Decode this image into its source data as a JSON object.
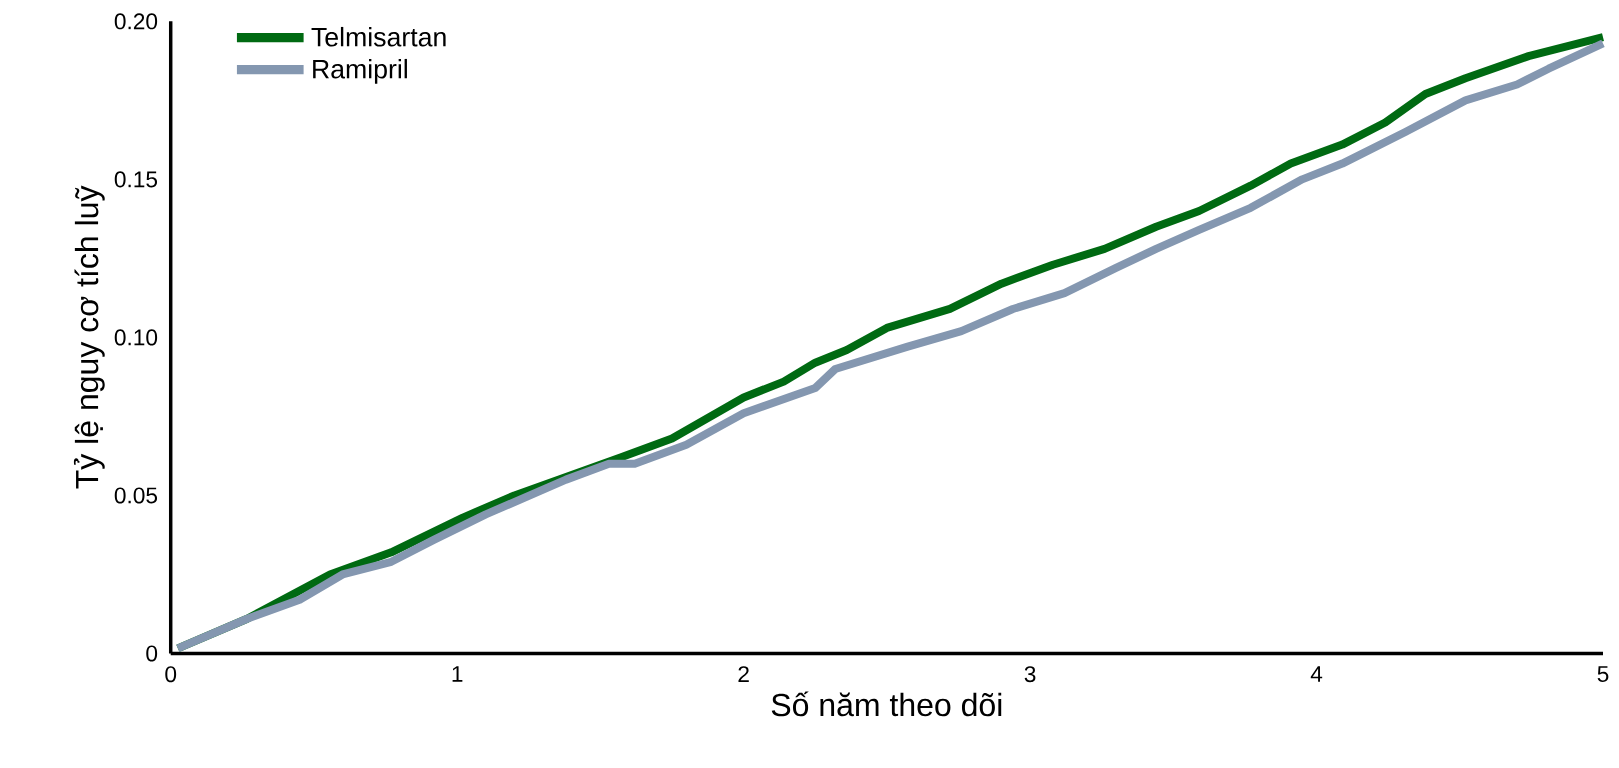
{
  "chart_data": {
    "type": "line",
    "xlabel": "Số năm theo dõi",
    "ylabel": "Tỷ lệ nguy cơ tích luỹ",
    "xlim": [
      0,
      5
    ],
    "ylim": [
      0,
      0.2
    ],
    "xticks": [
      0,
      1,
      2,
      3,
      4,
      5
    ],
    "yticks": [
      0,
      {
        "value": 0.05,
        "label": "0.05"
      },
      {
        "value": 0.1,
        "label": "0.10"
      },
      {
        "value": 0.15,
        "label": "0.15"
      },
      {
        "value": 0.2,
        "label": "0.20"
      }
    ],
    "legend": "top left",
    "series": [
      {
        "name": "Telmisartan",
        "color": "#006a12",
        "x": [
          0.025,
          0.267,
          0.556,
          0.77,
          1.02,
          1.2,
          1.57,
          1.75,
          2.0,
          2.14,
          2.25,
          2.36,
          2.5,
          2.72,
          2.9,
          3.08,
          3.26,
          3.44,
          3.59,
          3.77,
          3.91,
          4.09,
          4.24,
          4.38,
          4.52,
          4.74,
          5.0
        ],
        "values": [
          0.0016,
          0.011,
          0.025,
          0.032,
          0.043,
          0.05,
          0.062,
          0.068,
          0.081,
          0.086,
          0.092,
          0.096,
          0.103,
          0.109,
          0.117,
          0.123,
          0.128,
          0.135,
          0.14,
          0.148,
          0.155,
          0.161,
          0.168,
          0.177,
          0.182,
          0.189,
          0.195
        ]
      },
      {
        "name": "Ramipril",
        "color": "#8497b0",
        "x": [
          0.025,
          0.267,
          0.45,
          0.6,
          0.77,
          0.92,
          1.1,
          1.38,
          1.53,
          1.62,
          1.8,
          2.0,
          2.25,
          2.32,
          2.57,
          2.76,
          2.94,
          3.12,
          3.3,
          3.44,
          3.59,
          3.77,
          3.95,
          4.09,
          4.31,
          4.52,
          4.7,
          4.81,
          5.0
        ],
        "values": [
          0.0016,
          0.011,
          0.017,
          0.025,
          0.029,
          0.036,
          0.044,
          0.055,
          0.06,
          0.06,
          0.066,
          0.076,
          0.084,
          0.09,
          0.097,
          0.102,
          0.109,
          0.114,
          0.122,
          0.128,
          0.134,
          0.141,
          0.15,
          0.155,
          0.165,
          0.175,
          0.18,
          0.185,
          0.193
        ]
      }
    ]
  }
}
